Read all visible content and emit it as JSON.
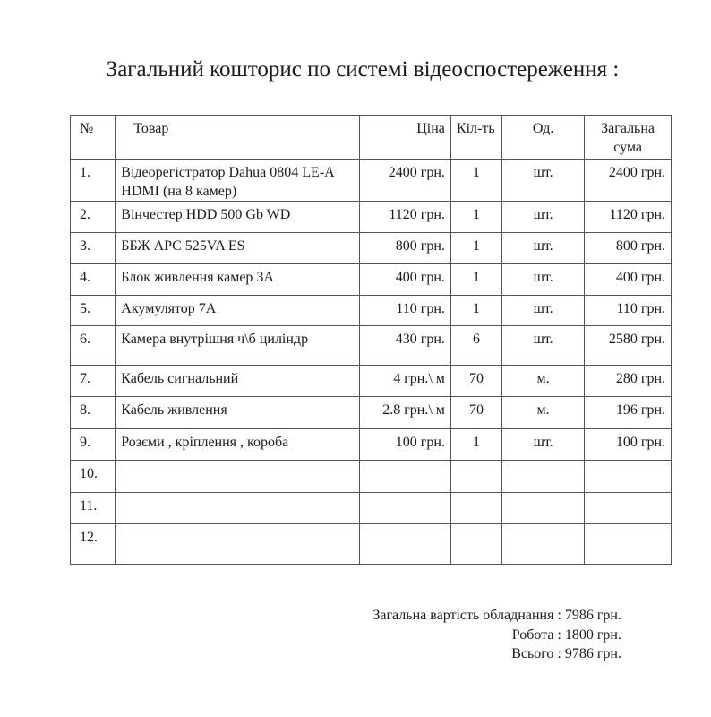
{
  "title": "Загальний кошторис по системі відеоспостереження :",
  "table": {
    "headers": [
      "№",
      "Товар",
      "Ціна",
      "Кіл-ть",
      "Од.",
      "Загальна сума"
    ],
    "rows": [
      {
        "n": "1.",
        "item": "Відеорегістратор Dahua 0804 LE-A HDMI  (на 8 камер)",
        "price": "2400 грн.",
        "qty": "1",
        "unit": "шт.",
        "total": "2400 грн."
      },
      {
        "n": "2.",
        "item": "Вінчестер HDD 500 Gb WD",
        "price": "1120 грн.",
        "qty": "1",
        "unit": "шт.",
        "total": "1120 грн."
      },
      {
        "n": "3.",
        "item": "ББЖ  APC 525VA ES",
        "price": "800 грн.",
        "qty": "1",
        "unit": "шт.",
        "total": "800 грн."
      },
      {
        "n": "4.",
        "item": "Блок живлення камер 3А",
        "price": "400 грн.",
        "qty": "1",
        "unit": "шт.",
        "total": "400 грн."
      },
      {
        "n": "5.",
        "item": "Акумулятор 7А",
        "price": "110 грн.",
        "qty": "1",
        "unit": "шт.",
        "total": "110 грн."
      },
      {
        "n": "6.",
        "item": "Камера внутрішня ч\\б циліндр",
        "price": "430 грн.",
        "qty": "6",
        "unit": "шт.",
        "total": "2580 грн."
      },
      {
        "n": "7.",
        "item": "Кабель сигнальний",
        "price": "4 грн.\\ м",
        "qty": "70",
        "unit": "м.",
        "total": "280 грн."
      },
      {
        "n": "8.",
        "item": "Кабель живлення",
        "price": "2.8 грн.\\ м",
        "qty": "70",
        "unit": "м.",
        "total": "196 грн."
      },
      {
        "n": "9.",
        "item": "Розєми , кріплення , короба",
        "price": "100  грн.",
        "qty": "1",
        "unit": "шт.",
        "total": "100 грн."
      },
      {
        "n": "10.",
        "item": "",
        "price": "",
        "qty": "",
        "unit": "",
        "total": ""
      },
      {
        "n": "11.",
        "item": "",
        "price": "",
        "qty": "",
        "unit": "",
        "total": ""
      },
      {
        "n": "12.",
        "item": "",
        "price": "",
        "qty": "",
        "unit": "",
        "total": ""
      }
    ]
  },
  "summary": {
    "equipment": "Загальна вартість обладнання : 7986 грн.",
    "work": "Робота : 1800 грн.",
    "total": "Всього : 9786 грн."
  }
}
